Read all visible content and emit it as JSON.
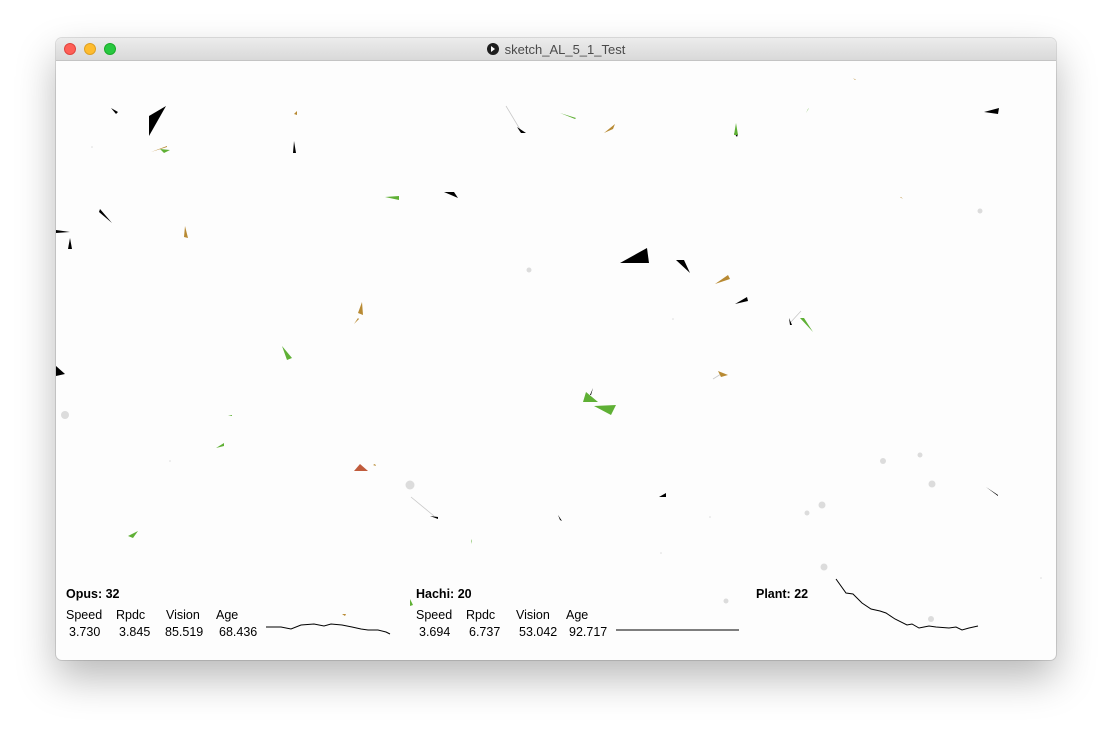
{
  "window": {
    "title": "sketch_AL_5_1_Test",
    "app_icon": "processing-play-icon"
  },
  "stat_labels": [
    "Speed",
    "Rpdc",
    "Vision",
    "Age"
  ],
  "opus": {
    "label": "Opus:",
    "count": "32",
    "values": [
      "3.730",
      "3.845",
      "85.519",
      "68.436"
    ]
  },
  "hachi": {
    "label": "Hachi:",
    "count": "20",
    "values": [
      "3.694",
      "6.737",
      "53.042",
      "92.717"
    ]
  },
  "plant": {
    "label": "Plant:",
    "count": "22"
  },
  "colors": {
    "predator": "#000000",
    "herbivore": "#5fb035",
    "hybrid": "#b88a33",
    "plant": "#dcdcdc"
  }
}
